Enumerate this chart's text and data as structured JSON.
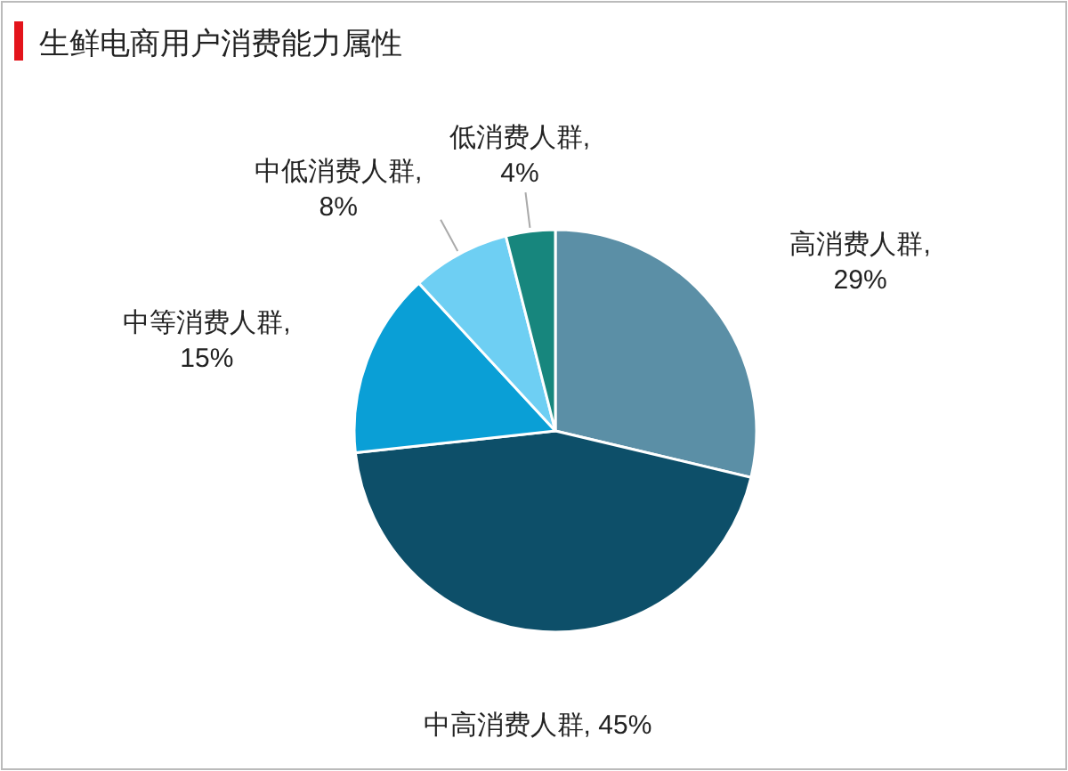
{
  "chart_data": {
    "type": "pie",
    "title": "生鲜电商用户消费能力属性",
    "values": [
      29,
      45,
      15,
      8,
      4
    ],
    "value_labels": [
      "高消费人群, 29%",
      "中高消费人群, 45%",
      "中等消费人群, 15%",
      "中低消费人群, 8%",
      "低消费人群, 4%"
    ],
    "colors": [
      "#5b8fa6",
      "#0d4f69",
      "#0a9fd6",
      "#6ecff3",
      "#17867d"
    ]
  }
}
